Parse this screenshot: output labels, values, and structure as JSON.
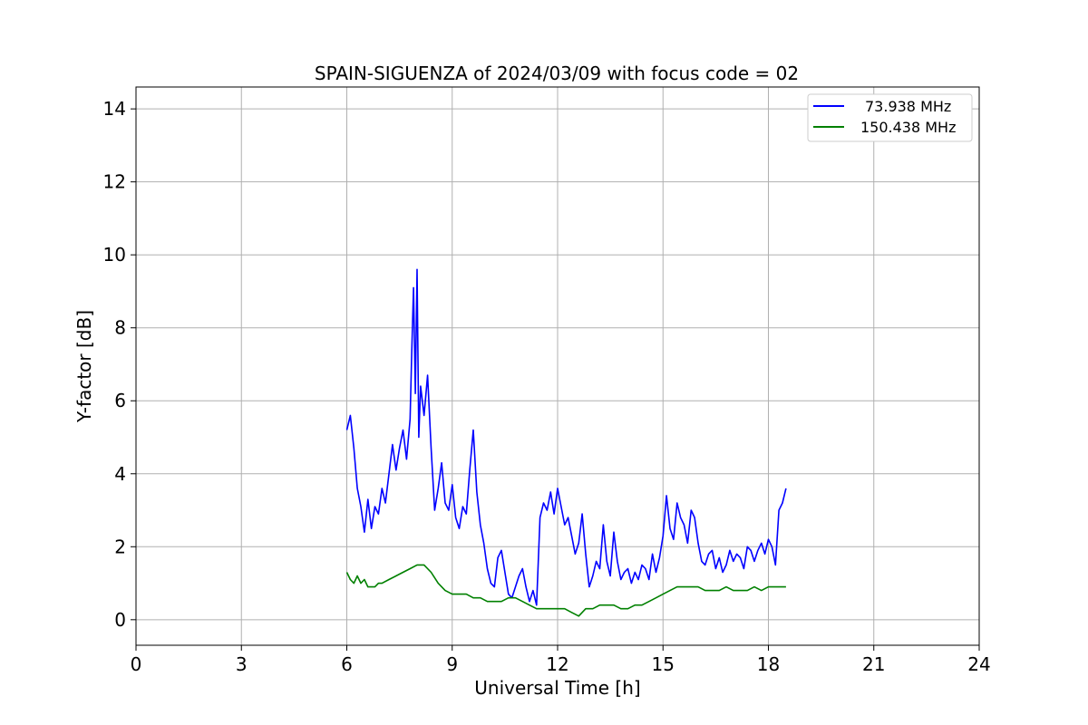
{
  "chart_data": {
    "type": "line",
    "title": "SPAIN-SIGUENZA of 2024/03/09 with focus code = 02",
    "xlabel": "Universal Time [h]",
    "ylabel": "Y-factor [dB]",
    "xlim": [
      0,
      24
    ],
    "ylim": [
      -0.7,
      14.6
    ],
    "xticks": [
      0,
      3,
      6,
      9,
      12,
      15,
      18,
      21,
      24
    ],
    "xtick_labels": [
      "0",
      "3",
      "6",
      "9",
      "12",
      "15",
      "18",
      "21",
      "24"
    ],
    "yticks": [
      0,
      2,
      4,
      6,
      8,
      10,
      12,
      14
    ],
    "ytick_labels": [
      "0",
      "2",
      "4",
      "6",
      "8",
      "10",
      "12",
      "14"
    ],
    "grid": true,
    "legend_position": "top-right",
    "series": [
      {
        "name": "73.938 MHz",
        "color": "#0000ff",
        "x": [
          6.0,
          6.1,
          6.2,
          6.3,
          6.4,
          6.5,
          6.6,
          6.7,
          6.8,
          6.9,
          7.0,
          7.1,
          7.2,
          7.3,
          7.4,
          7.5,
          7.6,
          7.7,
          7.8,
          7.85,
          7.9,
          7.95,
          8.0,
          8.05,
          8.1,
          8.2,
          8.3,
          8.4,
          8.5,
          8.6,
          8.7,
          8.8,
          8.9,
          9.0,
          9.1,
          9.2,
          9.3,
          9.4,
          9.5,
          9.6,
          9.7,
          9.8,
          9.9,
          10.0,
          10.1,
          10.2,
          10.3,
          10.4,
          10.5,
          10.6,
          10.7,
          10.8,
          10.9,
          11.0,
          11.1,
          11.2,
          11.3,
          11.4,
          11.5,
          11.6,
          11.7,
          11.8,
          11.9,
          12.0,
          12.1,
          12.2,
          12.3,
          12.4,
          12.5,
          12.6,
          12.7,
          12.8,
          12.9,
          13.0,
          13.1,
          13.2,
          13.3,
          13.4,
          13.5,
          13.6,
          13.7,
          13.8,
          13.9,
          14.0,
          14.1,
          14.2,
          14.3,
          14.4,
          14.5,
          14.6,
          14.7,
          14.8,
          14.9,
          15.0,
          15.1,
          15.2,
          15.3,
          15.4,
          15.5,
          15.6,
          15.7,
          15.8,
          15.9,
          16.0,
          16.1,
          16.2,
          16.3,
          16.4,
          16.5,
          16.6,
          16.7,
          16.8,
          16.9,
          17.0,
          17.1,
          17.2,
          17.3,
          17.4,
          17.5,
          17.6,
          17.7,
          17.8,
          17.9,
          18.0,
          18.1,
          18.2,
          18.3,
          18.4,
          18.5
        ],
        "y": [
          5.2,
          5.6,
          4.7,
          3.6,
          3.1,
          2.4,
          3.3,
          2.5,
          3.1,
          2.9,
          3.6,
          3.2,
          4.0,
          4.8,
          4.1,
          4.7,
          5.2,
          4.4,
          5.5,
          7.4,
          9.1,
          6.2,
          9.6,
          5.0,
          6.4,
          5.6,
          6.7,
          4.7,
          3.0,
          3.6,
          4.3,
          3.2,
          3.0,
          3.7,
          2.8,
          2.5,
          3.1,
          2.9,
          4.1,
          5.2,
          3.5,
          2.6,
          2.1,
          1.4,
          1.0,
          0.9,
          1.7,
          1.9,
          1.3,
          0.7,
          0.6,
          0.9,
          1.2,
          1.4,
          0.9,
          0.5,
          0.8,
          0.4,
          2.8,
          3.2,
          3.0,
          3.5,
          2.9,
          3.6,
          3.1,
          2.6,
          2.8,
          2.3,
          1.8,
          2.1,
          2.9,
          1.8,
          0.9,
          1.2,
          1.6,
          1.4,
          2.6,
          1.6,
          1.2,
          2.4,
          1.6,
          1.1,
          1.3,
          1.4,
          1.0,
          1.3,
          1.1,
          1.5,
          1.4,
          1.1,
          1.8,
          1.3,
          1.7,
          2.3,
          3.4,
          2.5,
          2.2,
          3.2,
          2.8,
          2.6,
          2.1,
          3.0,
          2.8,
          2.1,
          1.6,
          1.5,
          1.8,
          1.9,
          1.4,
          1.7,
          1.3,
          1.5,
          1.9,
          1.6,
          1.8,
          1.7,
          1.4,
          2.0,
          1.9,
          1.6,
          1.9,
          2.1,
          1.8,
          2.2,
          2.0,
          1.5,
          3.0,
          3.2,
          3.6
        ]
      },
      {
        "name": "150.438 MHz",
        "color": "#008000",
        "x": [
          6.0,
          6.1,
          6.2,
          6.3,
          6.4,
          6.5,
          6.6,
          6.7,
          6.8,
          6.9,
          7.0,
          7.2,
          7.4,
          7.6,
          7.8,
          8.0,
          8.2,
          8.4,
          8.6,
          8.8,
          9.0,
          9.2,
          9.4,
          9.6,
          9.8,
          10.0,
          10.2,
          10.4,
          10.6,
          10.8,
          11.0,
          11.2,
          11.4,
          11.6,
          11.8,
          12.0,
          12.2,
          12.4,
          12.6,
          12.8,
          13.0,
          13.2,
          13.4,
          13.6,
          13.8,
          14.0,
          14.2,
          14.4,
          14.6,
          14.8,
          15.0,
          15.2,
          15.4,
          15.6,
          15.8,
          16.0,
          16.2,
          16.4,
          16.6,
          16.8,
          17.0,
          17.2,
          17.4,
          17.6,
          17.8,
          18.0,
          18.2,
          18.4,
          18.5
        ],
        "y": [
          1.3,
          1.1,
          1.0,
          1.2,
          1.0,
          1.1,
          0.9,
          0.9,
          0.9,
          1.0,
          1.0,
          1.1,
          1.2,
          1.3,
          1.4,
          1.5,
          1.5,
          1.3,
          1.0,
          0.8,
          0.7,
          0.7,
          0.7,
          0.6,
          0.6,
          0.5,
          0.5,
          0.5,
          0.6,
          0.6,
          0.5,
          0.4,
          0.3,
          0.3,
          0.3,
          0.3,
          0.3,
          0.2,
          0.1,
          0.3,
          0.3,
          0.4,
          0.4,
          0.4,
          0.3,
          0.3,
          0.4,
          0.4,
          0.5,
          0.6,
          0.7,
          0.8,
          0.9,
          0.9,
          0.9,
          0.9,
          0.8,
          0.8,
          0.8,
          0.9,
          0.8,
          0.8,
          0.8,
          0.9,
          0.8,
          0.9,
          0.9,
          0.9,
          0.9
        ]
      }
    ]
  }
}
